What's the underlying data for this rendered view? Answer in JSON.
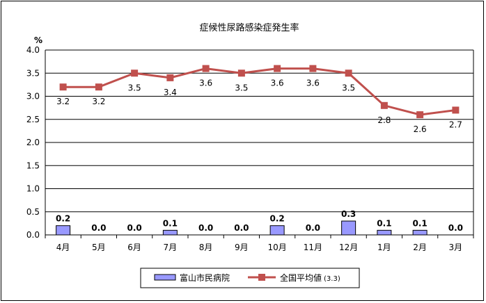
{
  "chart_data": {
    "type": "bar",
    "title": "症候性尿路感染症発生率",
    "ylabel": "%",
    "ylim": [
      0,
      4.0
    ],
    "yticks": [
      "0.0",
      "0.5",
      "1.0",
      "1.5",
      "2.0",
      "2.5",
      "3.0",
      "3.5",
      "4.0"
    ],
    "grid": true,
    "categories": [
      "4月",
      "5月",
      "6月",
      "7月",
      "8月",
      "9月",
      "10月",
      "11月",
      "12月",
      "1月",
      "2月",
      "3月"
    ],
    "series": [
      {
        "name": "富山市民病院",
        "type": "bar",
        "color": "#9999ff",
        "values": [
          0.2,
          0.0,
          0.0,
          0.1,
          0.0,
          0.0,
          0.2,
          0.0,
          0.3,
          0.1,
          0.1,
          0.0
        ],
        "labels": [
          "0.2",
          "0.0",
          "0.0",
          "0.1",
          "0.0",
          "0.0",
          "0.2",
          "0.0",
          "0.3",
          "0.1",
          "0.1",
          "0.0"
        ]
      },
      {
        "name": "全国平均値",
        "name_note": "(3.3)",
        "type": "line",
        "color": "#c0504d",
        "values": [
          3.2,
          3.2,
          3.5,
          3.4,
          3.6,
          3.5,
          3.6,
          3.6,
          3.5,
          2.8,
          2.6,
          2.7
        ],
        "labels": [
          "3.2",
          "3.2",
          "3.5",
          "3.4",
          "3.6",
          "3.5",
          "3.6",
          "3.6",
          "3.5",
          "2.8",
          "2.6",
          "2.7"
        ]
      }
    ],
    "legend": "bottom"
  }
}
